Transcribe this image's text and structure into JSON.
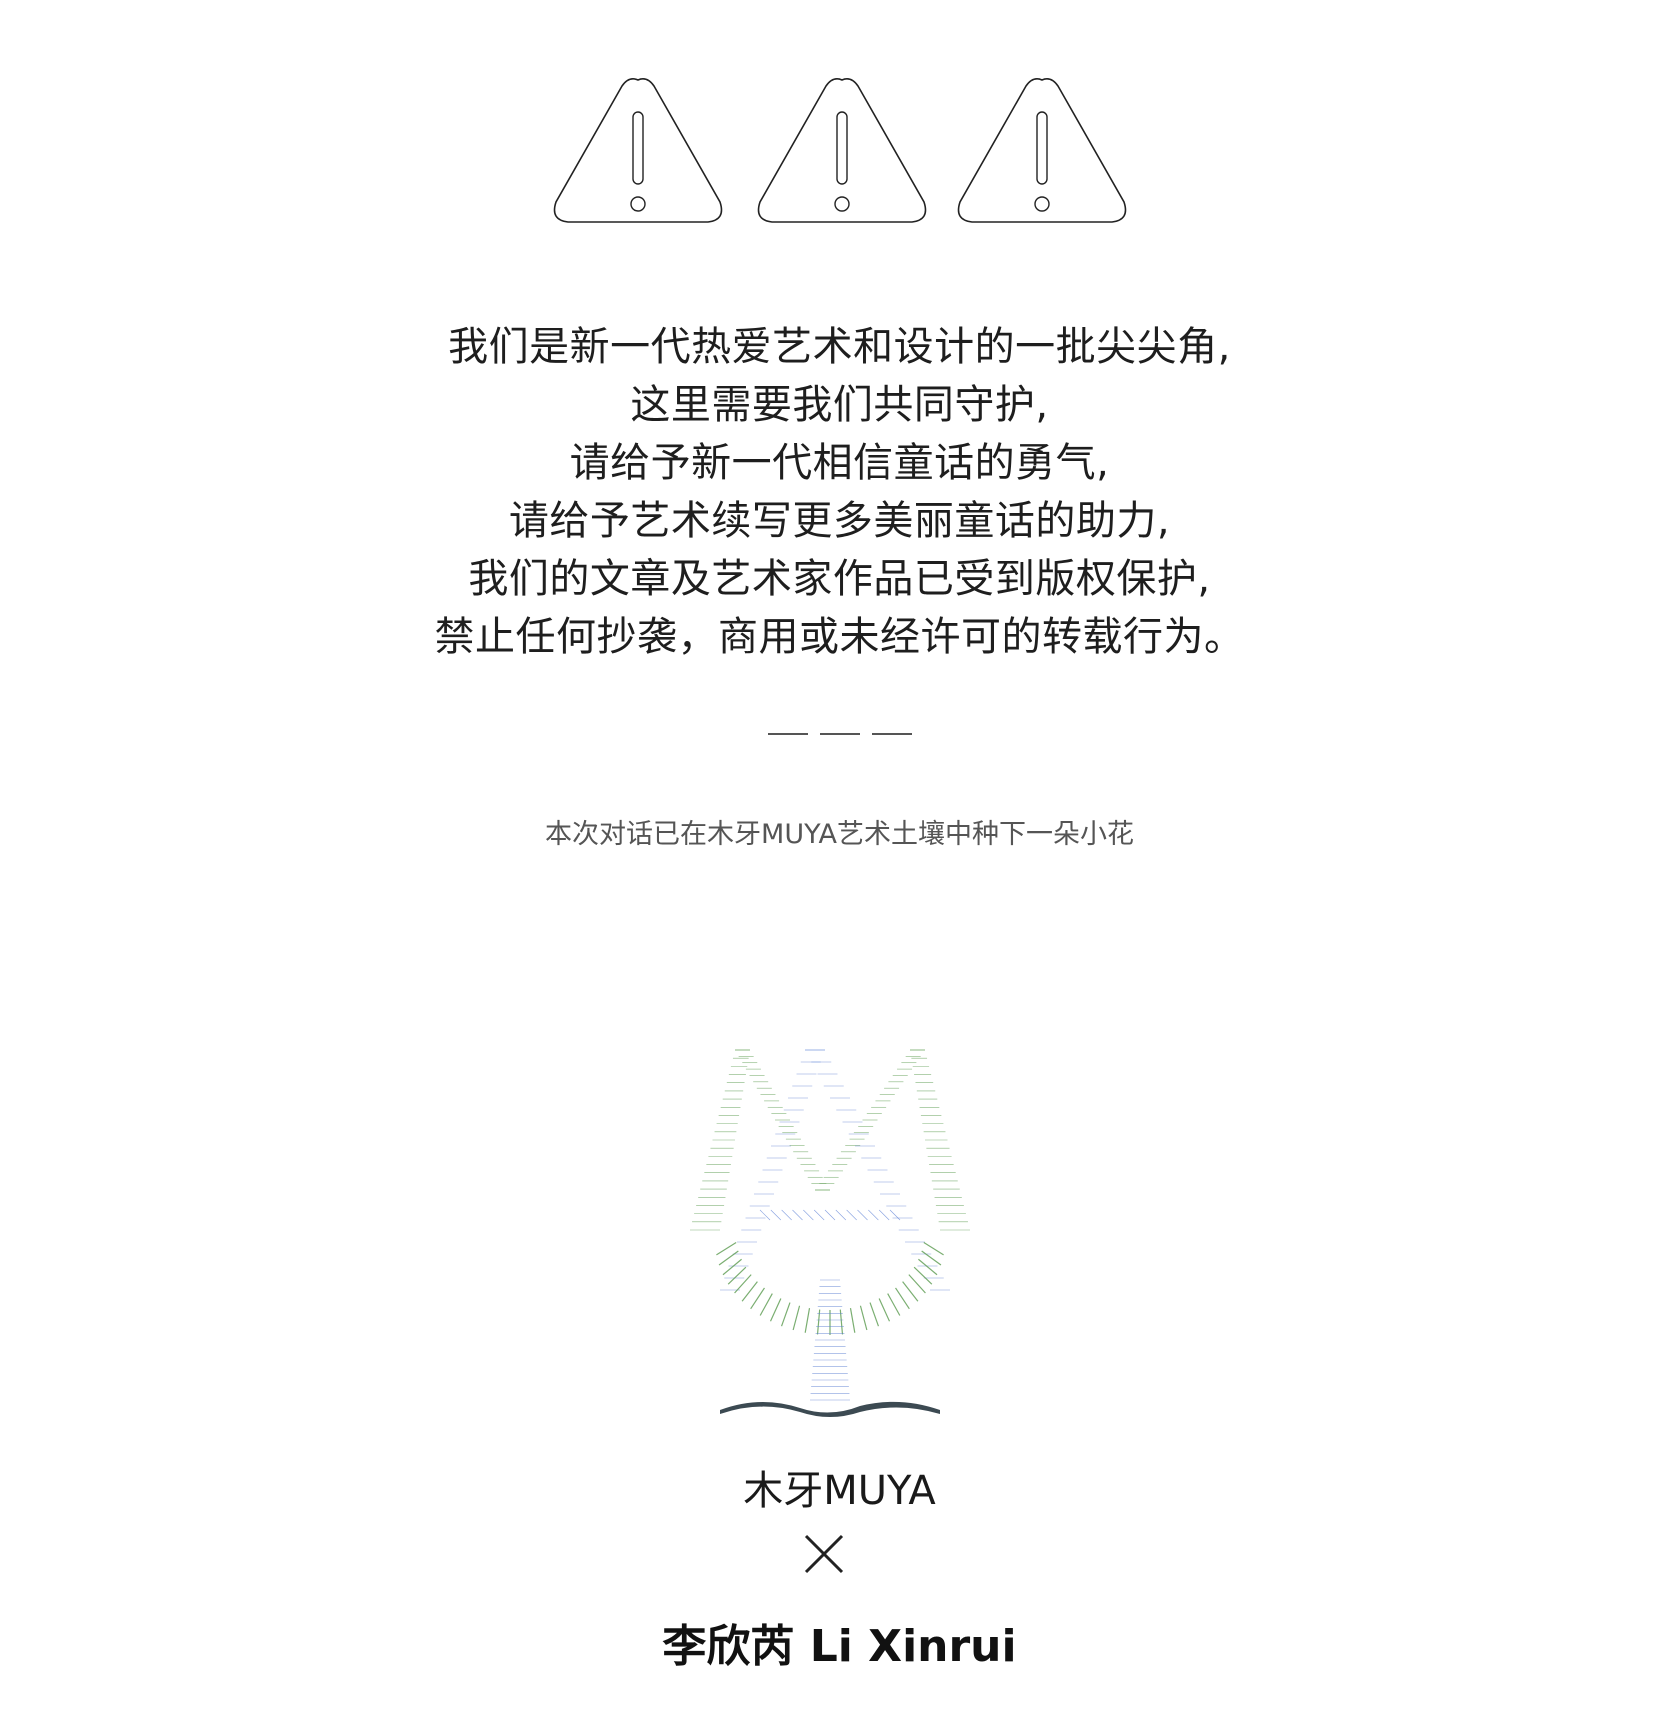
{
  "warning_icons": [
    "warning-triangle-icon",
    "warning-triangle-icon",
    "warning-triangle-icon"
  ],
  "notice": {
    "lines": [
      "我们是新一代热爱艺术和设计的一批尖尖角,",
      "这里需要我们共同守护,",
      "请给予新一代相信童话的勇气,",
      "请给予艺术续写更多美丽童话的助力,",
      "我们的文章及艺术家作品已受到版权保护,",
      "禁止任何抄袭，商用或未经许可的转载行为。"
    ]
  },
  "planted_text": "本次对话已在木牙MUYA艺术土壤中种下一朵小花",
  "logo": {
    "name": "muya-logo",
    "colors": {
      "green": "#5a9a4e",
      "blue": "#5b7fd4",
      "dark": "#3c4a52"
    }
  },
  "brand_label": "木牙MUYA",
  "collab_label": "李欣芮  Li Xinrui"
}
